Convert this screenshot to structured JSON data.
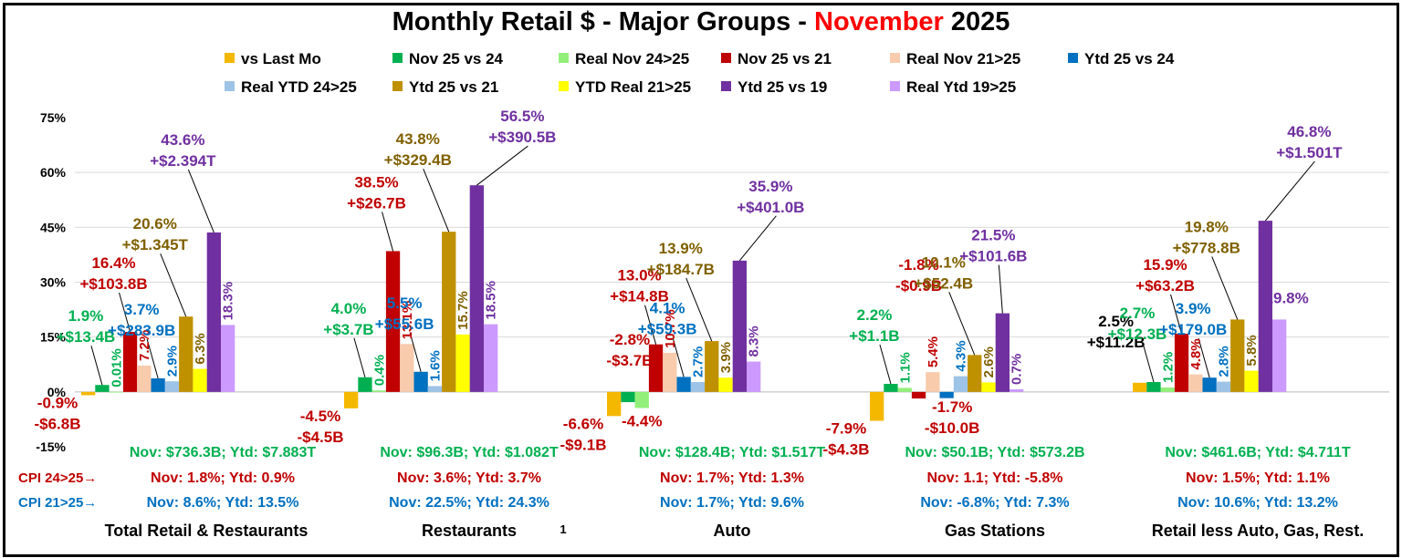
{
  "title": {
    "prefix": "Monthly Retail $ - Major Groups - ",
    "highlight": "November",
    "suffix": " 2025"
  },
  "chart_data": {
    "type": "bar",
    "title": "Monthly Retail $ - Major Groups - November 2025",
    "ylim": [
      -15,
      75
    ],
    "yticks": [
      -15,
      0,
      15,
      30,
      45,
      60,
      75
    ],
    "ytick_labels": [
      "-15%",
      "0%",
      "15%",
      "30%",
      "45%",
      "60%",
      "75%"
    ],
    "grid": true,
    "legend_position": "top",
    "categories": [
      "Total Retail & Restaurants",
      "Restaurants",
      "Auto",
      "Gas Stations",
      "Retail less Auto, Gas, Rest."
    ],
    "page_number": "1",
    "series": [
      {
        "name": "vs Last Mo",
        "color": "#f5b800",
        "values": [
          -0.9,
          -4.5,
          -6.6,
          -7.9,
          2.5
        ]
      },
      {
        "name": "Nov 25 vs 24",
        "color": "#00b050",
        "values": [
          1.9,
          4.0,
          -2.8,
          2.2,
          2.7
        ]
      },
      {
        "name": "Real Nov 24>25",
        "color": "#92f07a",
        "values": [
          0.01,
          0.4,
          -4.4,
          1.1,
          1.2
        ]
      },
      {
        "name": "Nov 25 vs 21",
        "color": "#c00000",
        "values": [
          16.4,
          38.5,
          13.0,
          -1.8,
          15.9
        ]
      },
      {
        "name": "Real Nov 21>25",
        "color": "#f8cbad",
        "values": [
          7.2,
          13.1,
          10.7,
          5.4,
          4.8
        ]
      },
      {
        "name": "Ytd 25 vs 24",
        "color": "#0070c0",
        "values": [
          3.7,
          5.5,
          4.1,
          -1.7,
          3.9
        ]
      },
      {
        "name": "Real YTD 24>25",
        "color": "#9dc3e6",
        "values": [
          2.9,
          1.6,
          2.7,
          4.3,
          2.8
        ]
      },
      {
        "name": "Ytd 25 vs 21",
        "color": "#bf9000",
        "values": [
          20.6,
          43.8,
          13.9,
          10.1,
          19.8
        ]
      },
      {
        "name": "YTD Real 21>25",
        "color": "#ffff00",
        "values": [
          6.3,
          15.7,
          3.9,
          2.6,
          5.8
        ]
      },
      {
        "name": "Ytd 25 vs 19",
        "color": "#7030a0",
        "values": [
          43.6,
          56.5,
          35.9,
          21.5,
          46.8
        ]
      },
      {
        "name": "Real Ytd 19>25",
        "color": "#cc99ff",
        "values": [
          18.3,
          18.5,
          8.3,
          0.7,
          19.8
        ]
      }
    ],
    "labels": [
      {
        "group": 0,
        "series": 0,
        "color": "#c00000",
        "lines": [
          "-0.9%",
          "-$6.8B"
        ]
      },
      {
        "group": 0,
        "series": 1,
        "color": "#00b050",
        "lines": [
          "1.9%",
          "+$13.4B"
        ]
      },
      {
        "group": 0,
        "series": 2,
        "color": "#00b050",
        "rotated": "0.01%"
      },
      {
        "group": 0,
        "series": 3,
        "color": "#c00000",
        "lines": [
          "16.4%",
          "+$103.8B"
        ]
      },
      {
        "group": 0,
        "series": 4,
        "color": "#c00000",
        "rotated": "7.2%"
      },
      {
        "group": 0,
        "series": 5,
        "color": "#0070c0",
        "lines": [
          "3.7%",
          "+$283.9B"
        ]
      },
      {
        "group": 0,
        "series": 6,
        "color": "#0070c0",
        "rotated": "2.9%"
      },
      {
        "group": 0,
        "series": 7,
        "color": "#7f6000",
        "lines": [
          "20.6%",
          "+$1.345T"
        ]
      },
      {
        "group": 0,
        "series": 8,
        "color": "#7f6000",
        "rotated": "6.3%"
      },
      {
        "group": 0,
        "series": 9,
        "color": "#7030a0",
        "lines": [
          "43.6%",
          "+$2.394T"
        ]
      },
      {
        "group": 0,
        "series": 10,
        "color": "#7030a0",
        "rotated": "18.3%"
      },
      {
        "group": 1,
        "series": 0,
        "color": "#c00000",
        "lines": [
          "-4.5%",
          "-$4.5B"
        ]
      },
      {
        "group": 1,
        "series": 1,
        "color": "#00b050",
        "lines": [
          "4.0%",
          "+$3.7B"
        ]
      },
      {
        "group": 1,
        "series": 2,
        "color": "#00b050",
        "rotated": "0.4%"
      },
      {
        "group": 1,
        "series": 3,
        "color": "#c00000",
        "lines": [
          "38.5%",
          "+$26.7B"
        ]
      },
      {
        "group": 1,
        "series": 4,
        "color": "#c00000",
        "rotated": "13.1%"
      },
      {
        "group": 1,
        "series": 5,
        "color": "#0070c0",
        "lines": [
          "5.5%",
          "+$55.6B"
        ]
      },
      {
        "group": 1,
        "series": 6,
        "color": "#0070c0",
        "rotated": "1.6%"
      },
      {
        "group": 1,
        "series": 7,
        "color": "#7f6000",
        "lines": [
          "43.8%",
          "+$329.4B"
        ]
      },
      {
        "group": 1,
        "series": 8,
        "color": "#7f6000",
        "rotated": "15.7%"
      },
      {
        "group": 1,
        "series": 9,
        "color": "#7030a0",
        "lines": [
          "56.5%",
          "+$390.5B"
        ]
      },
      {
        "group": 1,
        "series": 10,
        "color": "#7030a0",
        "rotated": "18.5%"
      },
      {
        "group": 2,
        "series": 0,
        "color": "#c00000",
        "lines": [
          "-6.6%",
          "-$9.1B"
        ]
      },
      {
        "group": 2,
        "series": 1,
        "color": "#c00000",
        "lines": [
          "-2.8%",
          "-$3.7B"
        ]
      },
      {
        "group": 2,
        "series": 2,
        "color": "#c00000",
        "lines": [
          "-4.4%"
        ]
      },
      {
        "group": 2,
        "series": 3,
        "color": "#c00000",
        "lines": [
          "13.0%",
          "+$14.8B"
        ]
      },
      {
        "group": 2,
        "series": 4,
        "color": "#c00000",
        "rotated": "10.7%"
      },
      {
        "group": 2,
        "series": 5,
        "color": "#0070c0",
        "lines": [
          "4.1%",
          "+$59.3B"
        ]
      },
      {
        "group": 2,
        "series": 6,
        "color": "#0070c0",
        "rotated": "2.7%"
      },
      {
        "group": 2,
        "series": 7,
        "color": "#7f6000",
        "lines": [
          "13.9%",
          "+$184.7B"
        ]
      },
      {
        "group": 2,
        "series": 8,
        "color": "#7f6000",
        "rotated": "3.9%"
      },
      {
        "group": 2,
        "series": 9,
        "color": "#7030a0",
        "lines": [
          "35.9%",
          "+$401.0B"
        ]
      },
      {
        "group": 2,
        "series": 10,
        "color": "#7030a0",
        "rotated": "8.3%"
      },
      {
        "group": 3,
        "series": 0,
        "color": "#c00000",
        "lines": [
          "-7.9%",
          "-$4.3B"
        ]
      },
      {
        "group": 3,
        "series": 1,
        "color": "#00b050",
        "lines": [
          "2.2%",
          "+$1.1B"
        ]
      },
      {
        "group": 3,
        "series": 2,
        "color": "#00b050",
        "rotated": "1.1%"
      },
      {
        "group": 3,
        "series": 3,
        "color": "#c00000",
        "lines": [
          "-1.8%",
          "-$0.9B"
        ]
      },
      {
        "group": 3,
        "series": 4,
        "color": "#c00000",
        "rotated": "5.4%"
      },
      {
        "group": 3,
        "series": 5,
        "color": "#c00000",
        "lines": [
          "-1.7%",
          "-$10.0B"
        ]
      },
      {
        "group": 3,
        "series": 6,
        "color": "#0070c0",
        "rotated": "4.3%"
      },
      {
        "group": 3,
        "series": 7,
        "color": "#7f6000",
        "lines": [
          "10.1%",
          "+$52.4B"
        ]
      },
      {
        "group": 3,
        "series": 8,
        "color": "#7f6000",
        "rotated": "2.6%"
      },
      {
        "group": 3,
        "series": 9,
        "color": "#7030a0",
        "lines": [
          "21.5%",
          "+$101.6B"
        ]
      },
      {
        "group": 3,
        "series": 10,
        "color": "#7030a0",
        "rotated": "0.7%"
      },
      {
        "group": 4,
        "series": 0,
        "color": "#000000",
        "lines": [
          "2.5%",
          "+$11.2B"
        ]
      },
      {
        "group": 4,
        "series": 1,
        "color": "#00b050",
        "lines": [
          "2.7%",
          "+$12.3B"
        ]
      },
      {
        "group": 4,
        "series": 2,
        "color": "#00b050",
        "rotated": "1.2%"
      },
      {
        "group": 4,
        "series": 3,
        "color": "#c00000",
        "lines": [
          "15.9%",
          "+$63.2B"
        ]
      },
      {
        "group": 4,
        "series": 4,
        "color": "#c00000",
        "rotated": "4.8%"
      },
      {
        "group": 4,
        "series": 5,
        "color": "#0070c0",
        "lines": [
          "3.9%",
          "+$179.0B"
        ]
      },
      {
        "group": 4,
        "series": 6,
        "color": "#0070c0",
        "rotated": "2.8%"
      },
      {
        "group": 4,
        "series": 7,
        "color": "#7f6000",
        "lines": [
          "19.8%",
          "+$778.8B"
        ]
      },
      {
        "group": 4,
        "series": 8,
        "color": "#7f6000",
        "rotated": "5.8%"
      },
      {
        "group": 4,
        "series": 9,
        "color": "#7030a0",
        "lines": [
          "46.8%",
          "+$1.501T"
        ]
      },
      {
        "group": 4,
        "series": 10,
        "color": "#7030a0",
        "lines": [
          "19.8%"
        ]
      }
    ],
    "info_rows": [
      {
        "color": "#00b050",
        "texts": [
          "Nov: $736.3B; Ytd: $7.883T",
          "Nov: $96.3B; Ytd: $1.082T",
          "Nov: $128.4B; Ytd: $1.517T",
          "Nov: $50.1B; Ytd: $573.2B",
          "Nov: $461.6B; Ytd: $4.711T"
        ]
      },
      {
        "color": "#c00000",
        "texts": [
          "Nov: 1.8%; Ytd: 0.9%",
          "Nov: 3.6%; Ytd: 3.7%",
          "Nov: 1.7%; Ytd: 1.3%",
          "Nov: 1.1; Ytd: -5.8%",
          "Nov: 1.5%; Ytd: 1.1%"
        ]
      },
      {
        "color": "#0070c0",
        "texts": [
          "Nov: 8.6%; Ytd: 13.5%",
          "Nov: 22.5%; Ytd: 24.3%",
          "Nov: 1.7%; Ytd: 9.6%",
          "Nov: -6.8%; Ytd: 7.3%",
          "Nov: 10.6%; Ytd: 13.2%"
        ]
      }
    ],
    "cpi_labels": [
      {
        "text": "CPI 24>25→",
        "color": "#c00000"
      },
      {
        "text": "CPI 21>25→",
        "color": "#0070c0"
      }
    ]
  }
}
